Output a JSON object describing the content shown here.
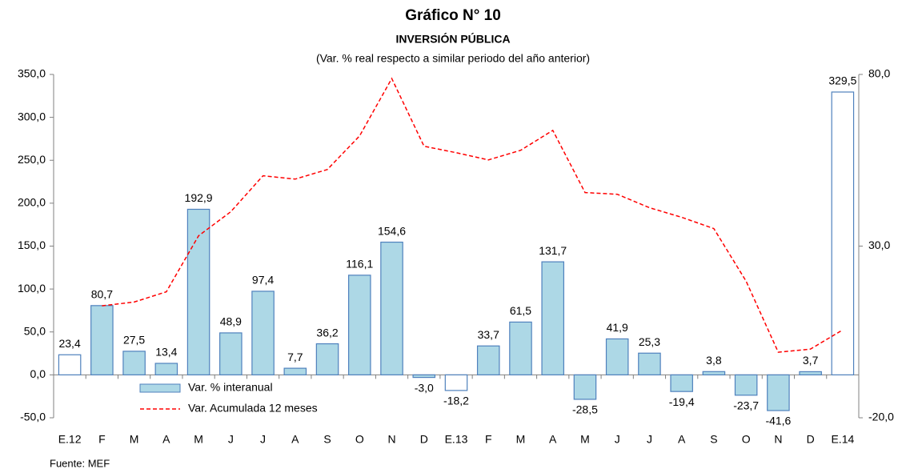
{
  "chart_data": {
    "type": "bar-line",
    "title": "Gráfico N° 10",
    "subtitle": "INVERSIÓN PÚBLICA",
    "note": "(Var. % real respecto a similar periodo del año anterior)",
    "source": "Fuente: MEF",
    "categories": [
      "E.12",
      "F",
      "M",
      "A",
      "M",
      "J",
      "J",
      "A",
      "S",
      "O",
      "N",
      "D",
      "E.13",
      "F",
      "M",
      "A",
      "M",
      "J",
      "J",
      "A",
      "S",
      "O",
      "N",
      "D",
      "E.14"
    ],
    "ylim": [
      -50,
      350
    ],
    "yticks": [
      {
        "value": -50,
        "label": "-50,0"
      },
      {
        "value": 0,
        "label": "0,0"
      },
      {
        "value": 50,
        "label": "50,0"
      },
      {
        "value": 100,
        "label": "100,0"
      },
      {
        "value": 150,
        "label": "150,0"
      },
      {
        "value": 200,
        "label": "200,0"
      },
      {
        "value": 250,
        "label": "250,0"
      },
      {
        "value": 300,
        "label": "300,0"
      },
      {
        "value": 350,
        "label": "350,0"
      }
    ],
    "y2lim": [
      -20,
      80
    ],
    "y2ticks": [
      {
        "value": -20,
        "label": "-20,0"
      },
      {
        "value": 30,
        "label": "30,0"
      },
      {
        "value": 80,
        "label": "80,0"
      }
    ],
    "series": [
      {
        "name": "Var. % interanual",
        "type": "bar",
        "color": "#add8e6",
        "edge": "#4f81bd",
        "colors": [
          "#ffffff",
          "#add8e6",
          "#add8e6",
          "#add8e6",
          "#add8e6",
          "#add8e6",
          "#add8e6",
          "#add8e6",
          "#add8e6",
          "#add8e6",
          "#add8e6",
          "#add8e6",
          "#ffffff",
          "#add8e6",
          "#add8e6",
          "#add8e6",
          "#add8e6",
          "#add8e6",
          "#add8e6",
          "#add8e6",
          "#add8e6",
          "#add8e6",
          "#add8e6",
          "#add8e6",
          "#ffffff"
        ],
        "values": [
          23.4,
          80.7,
          27.5,
          13.4,
          192.9,
          48.9,
          97.4,
          7.7,
          36.2,
          116.1,
          154.6,
          -3.0,
          -18.2,
          33.7,
          61.5,
          131.7,
          -28.5,
          41.9,
          25.3,
          -19.4,
          3.8,
          -23.7,
          -41.6,
          3.7,
          329.5
        ],
        "value_labels": [
          "23,4",
          "80,7",
          "27,5",
          "13,4",
          "192,9",
          "48,9",
          "97,4",
          "7,7",
          "36,2",
          "116,1",
          "154,6",
          "-3,0",
          "-18,2",
          "33,7",
          "61,5",
          "131,7",
          "-28,5",
          "41,9",
          "25,3",
          "-19,4",
          "3,8",
          "-23,7",
          "-41,6",
          "3,7",
          "329,5"
        ]
      },
      {
        "name": "Var. Acumulada 12 meses",
        "type": "line",
        "axis": "y2",
        "color": "#ff0000",
        "dashed": true,
        "values": [
          null,
          12.6,
          13.7,
          16.7,
          33.0,
          40.0,
          50.5,
          49.5,
          52.3,
          62.1,
          78.8,
          59.1,
          57.2,
          55.1,
          57.9,
          63.7,
          45.6,
          45.1,
          41.2,
          38.4,
          35.1,
          19.8,
          -0.9,
          0.0,
          5.6
        ]
      }
    ]
  }
}
